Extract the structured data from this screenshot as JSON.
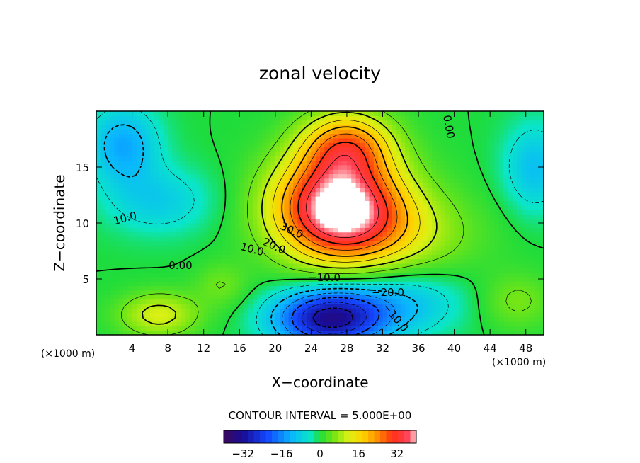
{
  "chart_data": {
    "type": "heatmap",
    "title": "zonal velocity",
    "xlabel": "X−coordinate",
    "ylabel": "Z−coordinate",
    "x_unit": "(×1000 m)",
    "y_unit": "(×1000 m)",
    "xlim": [
      0,
      50
    ],
    "ylim": [
      0,
      20
    ],
    "x_ticks": [
      "4",
      "8",
      "12",
      "16",
      "20",
      "24",
      "28",
      "32",
      "36",
      "40",
      "44",
      "48"
    ],
    "y_ticks": [
      "5",
      "10",
      "15"
    ],
    "contour_interval_text": "CONTOUR INTERVAL = 5.000E+00",
    "colorbar": {
      "range": [
        -40,
        40
      ],
      "ticks": [
        "−32",
        "−16",
        "0",
        "16",
        "32"
      ]
    },
    "contour_labels": [
      "10.0",
      "0.00",
      "30.0",
      "20.0",
      "10.0",
      "0.00",
      "−10.0",
      "−20.0",
      "−10.0"
    ],
    "features": [
      {
        "kind": "max",
        "x": 27,
        "z": 11.5,
        "value": 40
      },
      {
        "kind": "min",
        "x": 26,
        "z": 1.5,
        "value": -32
      },
      {
        "kind": "min",
        "x": 3,
        "z": 17.5,
        "value": -13
      },
      {
        "kind": "min",
        "x": 49,
        "z": 15,
        "value": -10
      },
      {
        "kind": "max",
        "x": 6,
        "z": 1.5,
        "value": 12
      }
    ]
  }
}
